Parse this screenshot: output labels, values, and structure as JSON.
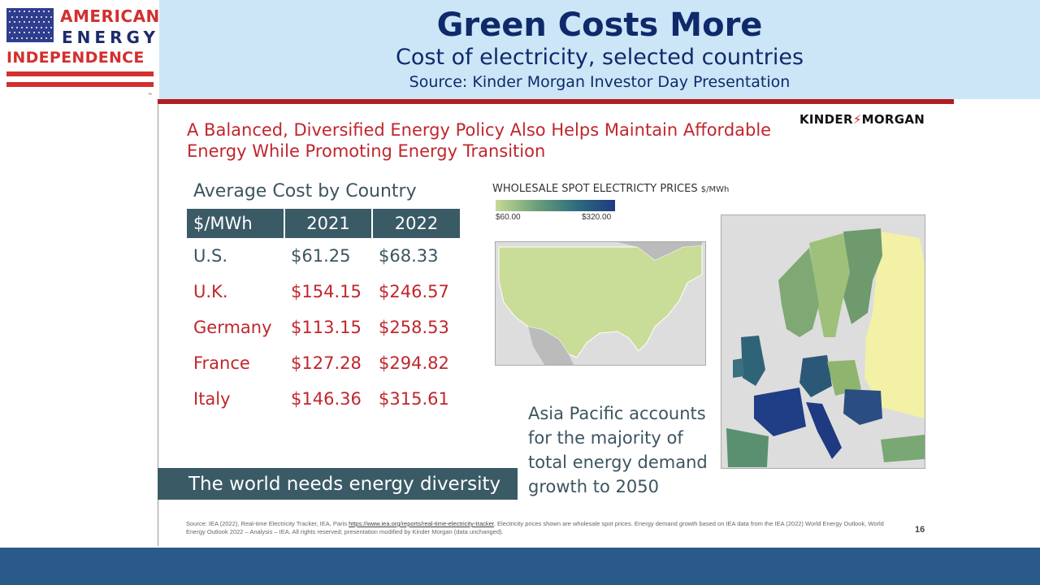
{
  "logo": {
    "line1": "AMERICAN",
    "line2": "ENERGY",
    "line3": "INDEPENDENCE",
    "tm": "™",
    "colors": {
      "red": "#d32f2f",
      "blue": "#2e3d8e"
    }
  },
  "header": {
    "title": "Green Costs More",
    "subtitle": "Cost of electricity, selected countries",
    "source": "Source: Kinder Morgan Investor Day Presentation"
  },
  "slide": {
    "headline_1": "A Balanced, Diversified Energy Policy Also Helps Maintain Affordable",
    "headline_2": "Energy While Promoting Energy Transition",
    "brand_left": "KINDER",
    "brand_bolt": "⚡",
    "brand_right": "MORGAN",
    "table_title": "Average Cost by Country",
    "table": {
      "headers": [
        "$/MWh",
        "2021",
        "2022"
      ],
      "rows": [
        {
          "country": "U.S.",
          "y2021": "$61.25",
          "y2022": "$68.33"
        },
        {
          "country": "U.K.",
          "y2021": "$154.15",
          "y2022": "$246.57"
        },
        {
          "country": "Germany",
          "y2021": "$113.15",
          "y2022": "$258.53"
        },
        {
          "country": "France",
          "y2021": "$127.28",
          "y2022": "$294.82"
        },
        {
          "country": "Italy",
          "y2021": "$146.36",
          "y2022": "$315.61"
        }
      ]
    },
    "diversity_banner": "The world needs energy diversity",
    "map_legend": {
      "title": "WHOLESALE SPOT ELECTRICTY PRICES",
      "unit": "$/MWh",
      "min": "$60.00",
      "max": "$320.00"
    },
    "asia_note": "Asia Pacific accounts for the majority of total energy demand growth to 2050",
    "footnote_a": "Source: IEA (2022), Real-time Electricity Tracker, IEA, Paris ",
    "footnote_link": "https://www.iea.org/reports/real-time-electricity-tracker",
    "footnote_b": ". Electricity prices shown are wholesale spot prices. Energy demand growth based on IEA data from the IEA (2022) World Energy Outlook, World Energy Outlook 2022 – Analysis – IEA. All rights reserved; presentation modified by Kinder Morgan (data unchanged).",
    "page_number": "16"
  },
  "colors": {
    "header_band": "#cce6f7",
    "accent_red": "#b11e22",
    "table_header": "#3a5a66",
    "bottom_band": "#2a5a8a",
    "title_navy": "#0f2a6b"
  }
}
